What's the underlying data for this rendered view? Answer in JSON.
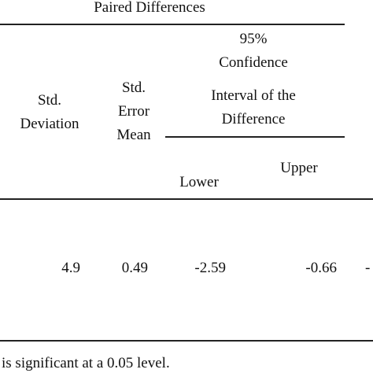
{
  "table": {
    "group_header": "Paired Differences",
    "ci_header": {
      "lines": [
        "95%",
        "Confidence",
        "Interval of the",
        "Difference"
      ]
    },
    "columns": [
      {
        "lines": [
          "Std.",
          "Deviation"
        ]
      },
      {
        "lines": [
          "Std.",
          "Error",
          "Mean"
        ]
      },
      {
        "lines": [
          "Lower"
        ]
      },
      {
        "lines": [
          "Upper"
        ]
      }
    ],
    "rows": [
      [
        "4.9",
        "0.49",
        "-2.59",
        "-0.66",
        "-"
      ]
    ]
  },
  "footnote": "is significant at a 0.05 level."
}
